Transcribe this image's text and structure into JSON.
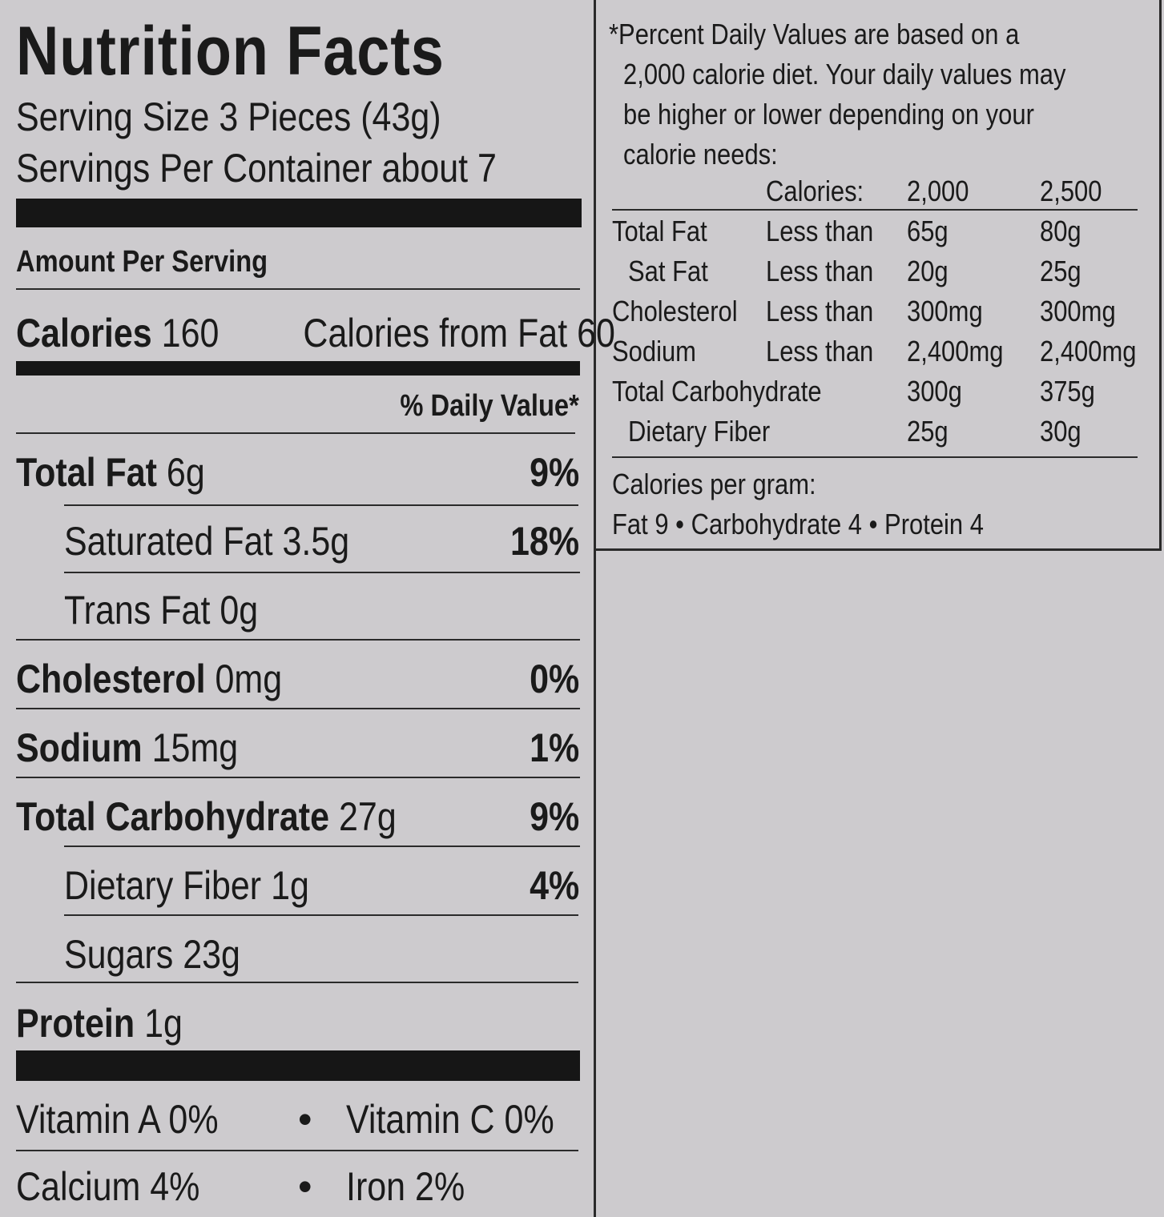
{
  "label": {
    "title": "Nutrition Facts",
    "serving_size": "Serving Size 3 Pieces (43g)",
    "servings_per_container": "Servings Per Container about 7",
    "amount_per_serving": "Amount Per Serving",
    "calories_label": "Calories",
    "calories_value": "160",
    "calories_from_fat": "Calories from Fat 60",
    "daily_value_header": "% Daily Value*",
    "nutrients": [
      {
        "name": "Total Fat",
        "amount": "6g",
        "pct": "9%"
      },
      {
        "name": "Saturated Fat 3.5g",
        "amount": "",
        "pct": "18%"
      },
      {
        "name": "Trans Fat 0g",
        "amount": "",
        "pct": ""
      },
      {
        "name": "Cholesterol",
        "amount": "0mg",
        "pct": "0%"
      },
      {
        "name": "Sodium",
        "amount": "15mg",
        "pct": "1%"
      },
      {
        "name": "Total Carbohydrate",
        "amount": "27g",
        "pct": "9%"
      },
      {
        "name": "Dietary Fiber 1g",
        "amount": "",
        "pct": "4%"
      },
      {
        "name": "Sugars 23g",
        "amount": "",
        "pct": ""
      },
      {
        "name": "Protein",
        "amount": "1g",
        "pct": ""
      }
    ],
    "vitamins": [
      {
        "left": "Vitamin A  0%",
        "bullet": "•",
        "right": "Vitamin C  0%"
      },
      {
        "left": "Calcium  4%",
        "bullet": "•",
        "right": "Iron  2%"
      }
    ]
  },
  "footnote": {
    "lines": [
      "*Percent Daily Values are based on a",
      "2,000 calorie diet. Your daily values may",
      "be higher or lower depending on your",
      "calorie needs:"
    ],
    "table_header": [
      "Calories:",
      "2,000",
      "2,500"
    ],
    "table_rows": [
      {
        "name": "Total Fat",
        "cond": "Less than",
        "v1": "65g",
        "v2": "80g"
      },
      {
        "name": "Sat Fat",
        "cond": "Less than",
        "v1": "20g",
        "v2": "25g"
      },
      {
        "name": "Cholesterol",
        "cond": "Less than",
        "v1": "300mg",
        "v2": "300mg"
      },
      {
        "name": "Sodium",
        "cond": "Less than",
        "v1": "2,400mg",
        "v2": "2,400mg"
      },
      {
        "name": "Total Carbohydrate",
        "cond": "",
        "v1": "300g",
        "v2": "375g"
      },
      {
        "name": "Dietary Fiber",
        "cond": "",
        "v1": "25g",
        "v2": "30g"
      }
    ],
    "calories_per_gram_label": "Calories per gram:",
    "calories_per_gram": "Fat 9 • Carbohydrate 4 • Protein 4"
  }
}
